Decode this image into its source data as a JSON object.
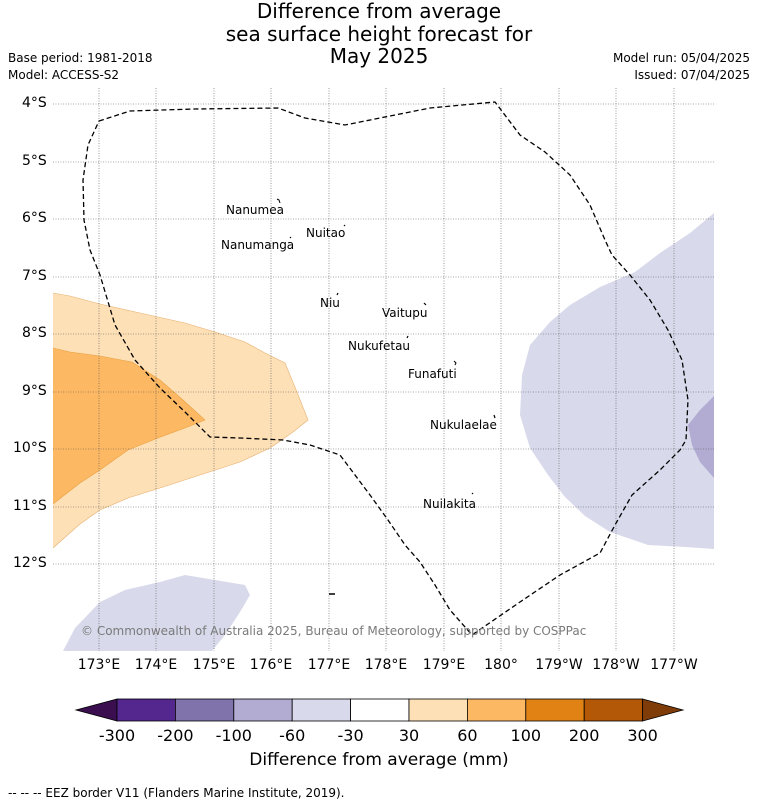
{
  "title": {
    "line1": "Difference from average",
    "line2": "sea surface height forecast for",
    "line3": "May 2025"
  },
  "meta": {
    "base_period": "Base period: 1981-2018",
    "model": "Model: ACCESS-S2",
    "model_run": "Model run: 05/04/2025",
    "issued": "Issued: 07/04/2025"
  },
  "axes": {
    "lat_labels": [
      "4°S",
      "5°S",
      "6°S",
      "7°S",
      "8°S",
      "9°S",
      "10°S",
      "11°S",
      "12°S"
    ],
    "lon_labels": [
      "173°E",
      "174°E",
      "175°E",
      "176°E",
      "177°E",
      "178°E",
      "179°E",
      "180°",
      "179°W",
      "178°W",
      "177°W"
    ]
  },
  "islands": [
    {
      "name": "Nanumea"
    },
    {
      "name": "Nuitao"
    },
    {
      "name": "Nanumanga"
    },
    {
      "name": "Niu"
    },
    {
      "name": "Vaitupu"
    },
    {
      "name": "Nukufetau"
    },
    {
      "name": "Funafuti"
    },
    {
      "name": "Nukulaelae"
    },
    {
      "name": "Nuilakita"
    }
  ],
  "copyright": "© Commonwealth of Australia 2025, Bureau of Meteorology, supported by COSPPac",
  "colorbar": {
    "ticks": [
      "-300",
      "-200",
      "-100",
      "-60",
      "-30",
      "30",
      "60",
      "100",
      "200",
      "300"
    ],
    "colors": {
      "under": "#3b0f4f",
      "c1": "#54278f",
      "c2": "#8073ac",
      "c3": "#b2abd2",
      "c4": "#d8daeb",
      "c5": "#ffffff",
      "c6": "#fee0b6",
      "c7": "#fdb863",
      "c8": "#e08214",
      "c9": "#b35806",
      "over": "#7f3b08"
    },
    "label": "Difference from average (mm)"
  },
  "footer": "-- -- -- EEZ border V11 (Flanders Marine Institute, 2019)."
}
